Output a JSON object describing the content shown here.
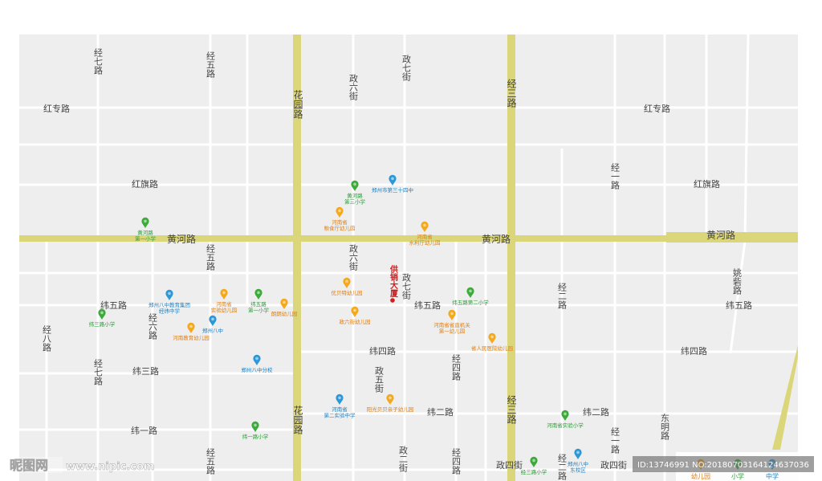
{
  "colors": {
    "block": "#eeeeee",
    "street": "#ffffff",
    "street_edge": "#cfcfcf",
    "main_road": "#dcd67a",
    "label": "#444444",
    "kindergarten": "#f4a81d",
    "primary_school": "#3cab3a",
    "middle_school": "#2c98d8",
    "landmark": "#cc1f1f"
  },
  "roads": [
    {
      "id": "jingqi-n",
      "name": "经七路"
    },
    {
      "id": "jingwu-n",
      "name": "经五路"
    },
    {
      "id": "zhengqi-n",
      "name": "政七街"
    },
    {
      "id": "zhengliu-n",
      "name": "政六街"
    },
    {
      "id": "huayuan-n",
      "name": "花园路"
    },
    {
      "id": "jingsan-n",
      "name": "经三路"
    },
    {
      "id": "hongzhuan-w",
      "name": "红专路"
    },
    {
      "id": "hongzhuan-e",
      "name": "红专路"
    },
    {
      "id": "jingyi-n",
      "name": "经一路"
    },
    {
      "id": "hongqi-w",
      "name": "红旗路"
    },
    {
      "id": "hongqi-e",
      "name": "红旗路"
    },
    {
      "id": "huanghe-1",
      "name": "黄河路"
    },
    {
      "id": "huanghe-2",
      "name": "黄河路"
    },
    {
      "id": "huanghe-3",
      "name": "黄河路"
    },
    {
      "id": "jingwu-m",
      "name": "经五路"
    },
    {
      "id": "zhengliu-m",
      "name": "政六街"
    },
    {
      "id": "zhengqi-m",
      "name": "政七街"
    },
    {
      "id": "yaoshan",
      "name": "姚砦路"
    },
    {
      "id": "jinger-m",
      "name": "经二路"
    },
    {
      "id": "weiwu-w",
      "name": "纬五路"
    },
    {
      "id": "weiwu-m",
      "name": "纬五路"
    },
    {
      "id": "weiwu-e",
      "name": "纬五路"
    },
    {
      "id": "jingba",
      "name": "经八路"
    },
    {
      "id": "jingliu",
      "name": "经六路"
    },
    {
      "id": "weisi-w",
      "name": "纬四路"
    },
    {
      "id": "weisi-e",
      "name": "纬四路"
    },
    {
      "id": "jingsi-m",
      "name": "经四路"
    },
    {
      "id": "jingqi-s",
      "name": "经七路"
    },
    {
      "id": "weisan",
      "name": "纬三路"
    },
    {
      "id": "zhengwu",
      "name": "政五街"
    },
    {
      "id": "huayuan-s",
      "name": "花园路"
    },
    {
      "id": "jingsan-s",
      "name": "经三路"
    },
    {
      "id": "weier-m",
      "name": "纬二路"
    },
    {
      "id": "weier-e",
      "name": "纬二路"
    },
    {
      "id": "dongming",
      "name": "东明路"
    },
    {
      "id": "weiyi",
      "name": "纬一路"
    },
    {
      "id": "jingyi-s",
      "name": "经一路"
    },
    {
      "id": "jingwu-s",
      "name": "经五路"
    },
    {
      "id": "zhenger",
      "name": "政二街"
    },
    {
      "id": "jingsi-s",
      "name": "经四路"
    },
    {
      "id": "zhengsi",
      "name": "政四街"
    },
    {
      "id": "jinger-s",
      "name": "经二路"
    },
    {
      "id": "zhengsi-e",
      "name": "政四街"
    }
  ],
  "landmark": {
    "name": "供销大厦"
  },
  "pois": [
    {
      "id": "p1",
      "type": "primary_school",
      "lines": [
        "黄河路",
        "第三小学"
      ]
    },
    {
      "id": "p2",
      "type": "middle_school",
      "lines": [
        "郑州市第三十四中"
      ]
    },
    {
      "id": "p3",
      "type": "kindergarten",
      "lines": [
        "河南省",
        "粮食厅幼儿园"
      ]
    },
    {
      "id": "p4",
      "type": "kindergarten",
      "lines": [
        "河南省",
        "水利厅幼儿园"
      ]
    },
    {
      "id": "p5",
      "type": "primary_school",
      "lines": [
        "黄河路",
        "第一小学"
      ]
    },
    {
      "id": "p6",
      "type": "kindergarten",
      "lines": [
        "优贝特幼儿园"
      ]
    },
    {
      "id": "p7",
      "type": "middle_school",
      "lines": [
        "郑州八中教育集团",
        "经纬中学"
      ]
    },
    {
      "id": "p8",
      "type": "kindergarten",
      "lines": [
        "河南省",
        "实验幼儿园"
      ]
    },
    {
      "id": "p9",
      "type": "primary_school",
      "lines": [
        "纬五路",
        "第一小学"
      ]
    },
    {
      "id": "p10",
      "type": "kindergarten",
      "lines": [
        "朗朗幼儿园"
      ]
    },
    {
      "id": "p11",
      "type": "kindergarten",
      "lines": [
        "政六街幼儿园"
      ]
    },
    {
      "id": "p12",
      "type": "primary_school",
      "lines": [
        "纬五路第二小学"
      ]
    },
    {
      "id": "p13",
      "type": "kindergarten",
      "lines": [
        "河南省省直机关",
        "第一幼儿园"
      ]
    },
    {
      "id": "p14",
      "type": "primary_school",
      "lines": [
        "纬三路小学"
      ]
    },
    {
      "id": "p15",
      "type": "kindergarten",
      "lines": [
        "河南教育幼儿园"
      ]
    },
    {
      "id": "p16",
      "type": "middle_school",
      "lines": [
        "郑州八中"
      ]
    },
    {
      "id": "p17",
      "type": "kindergarten",
      "lines": [
        "省人民医院幼儿园"
      ]
    },
    {
      "id": "p18",
      "type": "middle_school",
      "lines": [
        "郑州八中分校"
      ]
    },
    {
      "id": "p19",
      "type": "middle_school",
      "lines": [
        "河南省",
        "第二实验中学"
      ]
    },
    {
      "id": "p20",
      "type": "kindergarten",
      "lines": [
        "阳光贝贝亲子幼儿园"
      ]
    },
    {
      "id": "p21",
      "type": "primary_school",
      "lines": [
        "河南省实验小学"
      ]
    },
    {
      "id": "p22",
      "type": "primary_school",
      "lines": [
        "纬一路小学"
      ]
    },
    {
      "id": "p23",
      "type": "primary_school",
      "lines": [
        "经三路小学"
      ]
    },
    {
      "id": "p24",
      "type": "middle_school",
      "lines": [
        "郑州八中",
        "东校区"
      ]
    }
  ],
  "legend": [
    {
      "type": "kindergarten",
      "label": "幼儿园"
    },
    {
      "type": "primary_school",
      "label": "小学"
    },
    {
      "type": "middle_school",
      "label": "中学"
    }
  ],
  "watermark": {
    "logo": "昵图网",
    "site": "www.nipic.com",
    "id": "ID:13746991 NO:20180703164124637036"
  }
}
